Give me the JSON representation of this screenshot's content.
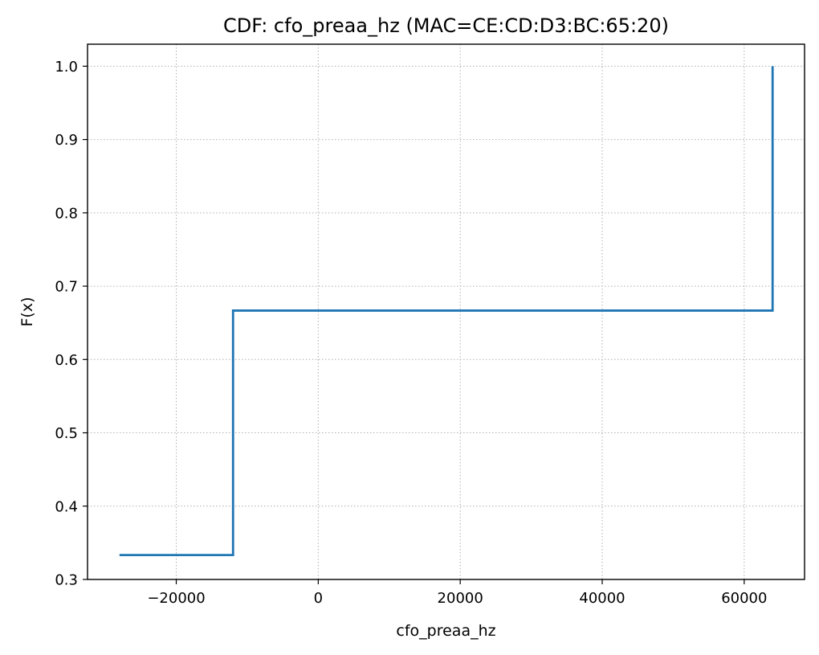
{
  "chart_data": {
    "type": "line",
    "step": "post",
    "title": "CDF: cfo_preaa_hz (MAC=CE:CD:D3:BC:65:20)",
    "xlabel": "cfo_preaa_hz",
    "ylabel": "F(x)",
    "xlim": [
      -32500,
      68500
    ],
    "ylim": [
      0.3,
      1.03
    ],
    "xticks": [
      -20000,
      0,
      20000,
      40000,
      60000
    ],
    "xtick_labels": [
      "−20000",
      "0",
      "20000",
      "40000",
      "60000"
    ],
    "yticks": [
      0.3,
      0.4,
      0.5,
      0.6,
      0.7,
      0.8,
      0.9,
      1.0
    ],
    "ytick_labels": [
      "0.3",
      "0.4",
      "0.5",
      "0.6",
      "0.7",
      "0.8",
      "0.9",
      "1.0"
    ],
    "grid": true,
    "series": [
      {
        "color": "#1f77b4",
        "x": [
          -28000,
          -12000,
          64000
        ],
        "y": [
          0.3333,
          0.6667,
          1.0
        ]
      }
    ]
  }
}
